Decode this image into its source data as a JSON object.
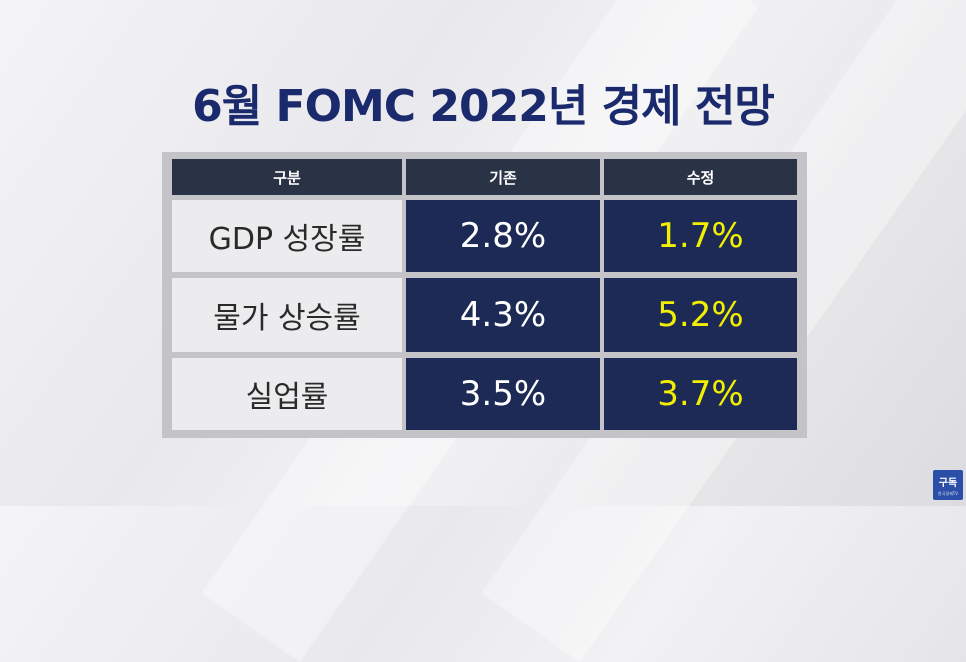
{
  "title": "6월 FOMC 2022년 경제 전망",
  "table": {
    "headers": [
      "구분",
      "기존",
      "수정"
    ],
    "rows": [
      {
        "label": "GDP 성장률",
        "base": "2.8%",
        "revised": "1.7%"
      },
      {
        "label": "물가 상승률",
        "base": "4.3%",
        "revised": "5.2%"
      },
      {
        "label": "실업률",
        "base": "3.5%",
        "revised": "3.7%"
      }
    ]
  },
  "subscribe": {
    "label": "구독",
    "sublabel": "한국경제TV"
  },
  "colors": {
    "title": "#1a2a6c",
    "header_bg": "#2a3346",
    "label_bg": "#ececee",
    "value_bg": "#1c2a55",
    "revised_text": "#f2f000"
  }
}
